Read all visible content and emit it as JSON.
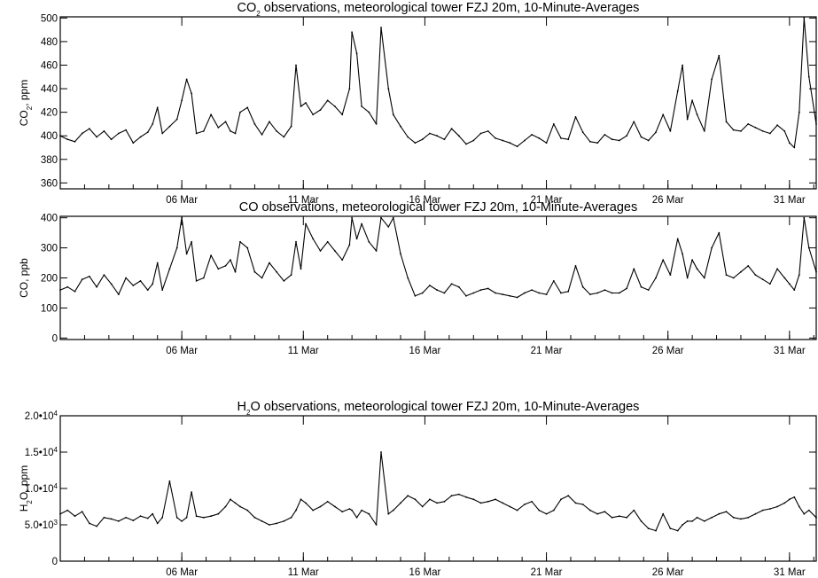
{
  "chart_data": [
    {
      "type": "line",
      "title": {
        "pre": "CO",
        "sub": "2",
        "post": " observations, meteorological tower FZJ 20m, 10-Minute-Averages"
      },
      "ylabel": {
        "pre": "CO",
        "sub": "2",
        "post": ", ppm"
      },
      "ylim": [
        355,
        501
      ],
      "yticks": [
        {
          "value": 360,
          "label": "360"
        },
        {
          "value": 380,
          "label": "380"
        },
        {
          "value": 400,
          "label": "400"
        },
        {
          "value": 420,
          "label": "420"
        },
        {
          "value": 440,
          "label": "440"
        },
        {
          "value": 460,
          "label": "460"
        },
        {
          "value": 480,
          "label": "480"
        },
        {
          "value": 500,
          "label": "500"
        }
      ],
      "xlim": [
        1,
        32.1
      ],
      "xticks": [
        {
          "value": 6,
          "label": "06 Mar"
        },
        {
          "value": 11,
          "label": "11 Mar"
        },
        {
          "value": 16,
          "label": "16 Mar"
        },
        {
          "value": 21,
          "label": "21 Mar"
        },
        {
          "value": 26,
          "label": "26 Mar"
        },
        {
          "value": 31,
          "label": "31 Mar"
        }
      ],
      "series": [
        {
          "x": [
            1.0,
            1.3,
            1.6,
            1.9,
            2.2,
            2.5,
            2.8,
            3.1,
            3.4,
            3.7,
            4.0,
            4.3,
            4.6,
            4.8,
            5.0,
            5.2,
            5.5,
            5.8,
            6.0,
            6.2,
            6.4,
            6.6,
            6.9,
            7.2,
            7.5,
            7.8,
            8.0,
            8.2,
            8.4,
            8.7,
            9.0,
            9.3,
            9.6,
            9.9,
            10.2,
            10.5,
            10.7,
            10.9,
            11.1,
            11.4,
            11.7,
            12.0,
            12.3,
            12.6,
            12.9,
            13.0,
            13.2,
            13.4,
            13.7,
            14.0,
            14.2,
            14.5,
            14.7,
            15.0,
            15.3,
            15.6,
            15.9,
            16.2,
            16.5,
            16.8,
            17.1,
            17.4,
            17.7,
            18.0,
            18.3,
            18.6,
            18.9,
            19.2,
            19.5,
            19.8,
            20.1,
            20.4,
            20.7,
            21.0,
            21.3,
            21.6,
            21.9,
            22.2,
            22.5,
            22.8,
            23.1,
            23.4,
            23.7,
            24.0,
            24.3,
            24.6,
            24.9,
            25.2,
            25.5,
            25.8,
            26.1,
            26.4,
            26.6,
            26.8,
            27.0,
            27.2,
            27.5,
            27.8,
            28.1,
            28.4,
            28.7,
            29.0,
            29.3,
            29.6,
            29.9,
            30.2,
            30.5,
            30.8,
            31.0,
            31.2,
            31.4,
            31.6,
            31.8,
            32.1
          ],
          "y": [
            400,
            397,
            395,
            402,
            406,
            399,
            404,
            397,
            402,
            405,
            394,
            399,
            403,
            410,
            424,
            402,
            408,
            414,
            430,
            448,
            436,
            402,
            404,
            418,
            407,
            412,
            404,
            402,
            420,
            424,
            410,
            401,
            412,
            404,
            399,
            408,
            460,
            425,
            428,
            418,
            422,
            430,
            425,
            418,
            440,
            488,
            470,
            425,
            420,
            410,
            492,
            440,
            418,
            408,
            399,
            394,
            397,
            402,
            400,
            397,
            406,
            400,
            393,
            396,
            402,
            404,
            398,
            396,
            394,
            391,
            396,
            401,
            398,
            394,
            410,
            398,
            397,
            416,
            403,
            395,
            394,
            401,
            397,
            396,
            400,
            412,
            399,
            396,
            403,
            418,
            404,
            438,
            460,
            414,
            430,
            418,
            404,
            448,
            468,
            412,
            405,
            404,
            410,
            407,
            404,
            402,
            409,
            404,
            394,
            390,
            420,
            500,
            450,
            410
          ]
        }
      ]
    },
    {
      "type": "line",
      "title": {
        "pre": "CO observations, meteorological tower FZJ 20m, 10-Minute-Averages",
        "sub": "",
        "post": ""
      },
      "ylabel": {
        "pre": "CO, ppb",
        "sub": "",
        "post": ""
      },
      "ylim": [
        -5,
        405
      ],
      "yticks": [
        {
          "value": 0,
          "label": "0"
        },
        {
          "value": 100,
          "label": "100"
        },
        {
          "value": 200,
          "label": "200"
        },
        {
          "value": 300,
          "label": "300"
        },
        {
          "value": 400,
          "label": "400"
        }
      ],
      "xlim": [
        1,
        32.1
      ],
      "xticks": [
        {
          "value": 6,
          "label": "06 Mar"
        },
        {
          "value": 11,
          "label": "11 Mar"
        },
        {
          "value": 16,
          "label": "16 Mar"
        },
        {
          "value": 21,
          "label": "21 Mar"
        },
        {
          "value": 26,
          "label": "26 Mar"
        },
        {
          "value": 31,
          "label": "31 Mar"
        }
      ],
      "series": [
        {
          "x": [
            1.0,
            1.3,
            1.6,
            1.9,
            2.2,
            2.5,
            2.8,
            3.1,
            3.4,
            3.7,
            4.0,
            4.3,
            4.6,
            4.8,
            5.0,
            5.2,
            5.5,
            5.8,
            6.0,
            6.2,
            6.4,
            6.6,
            6.9,
            7.2,
            7.5,
            7.8,
            8.0,
            8.2,
            8.4,
            8.7,
            9.0,
            9.3,
            9.6,
            9.9,
            10.2,
            10.5,
            10.7,
            10.9,
            11.1,
            11.4,
            11.7,
            12.0,
            12.3,
            12.6,
            12.9,
            13.0,
            13.2,
            13.4,
            13.7,
            14.0,
            14.2,
            14.5,
            14.7,
            15.0,
            15.3,
            15.6,
            15.9,
            16.2,
            16.5,
            16.8,
            17.1,
            17.4,
            17.7,
            18.0,
            18.3,
            18.6,
            18.9,
            19.2,
            19.5,
            19.8,
            20.1,
            20.4,
            20.7,
            21.0,
            21.3,
            21.6,
            21.9,
            22.2,
            22.5,
            22.8,
            23.1,
            23.4,
            23.7,
            24.0,
            24.3,
            24.6,
            24.9,
            25.2,
            25.5,
            25.8,
            26.1,
            26.4,
            26.6,
            26.8,
            27.0,
            27.2,
            27.5,
            27.8,
            28.1,
            28.4,
            28.7,
            29.0,
            29.3,
            29.6,
            29.9,
            30.2,
            30.5,
            30.8,
            31.0,
            31.2,
            31.4,
            31.6,
            31.8,
            32.1
          ],
          "y": [
            160,
            170,
            155,
            195,
            205,
            170,
            210,
            180,
            145,
            200,
            175,
            190,
            160,
            180,
            250,
            160,
            230,
            300,
            400,
            280,
            320,
            190,
            200,
            275,
            230,
            240,
            260,
            220,
            320,
            300,
            220,
            200,
            250,
            220,
            190,
            210,
            320,
            230,
            380,
            330,
            290,
            320,
            290,
            260,
            310,
            400,
            330,
            380,
            320,
            290,
            400,
            370,
            400,
            280,
            200,
            140,
            150,
            175,
            160,
            150,
            180,
            170,
            140,
            150,
            160,
            165,
            150,
            145,
            140,
            135,
            150,
            160,
            150,
            145,
            190,
            150,
            155,
            240,
            170,
            145,
            150,
            160,
            150,
            150,
            165,
            230,
            170,
            160,
            200,
            260,
            210,
            330,
            280,
            200,
            260,
            230,
            200,
            300,
            350,
            210,
            200,
            220,
            240,
            210,
            195,
            180,
            230,
            200,
            180,
            160,
            210,
            400,
            300,
            220
          ]
        }
      ]
    },
    {
      "type": "line",
      "title": {
        "pre": "H",
        "sub": "2",
        "post": "O observations, meteorological tower FZJ 20m, 10-Minute-Averages"
      },
      "ylabel": {
        "pre": "H",
        "sub": "2",
        "post": "O, ppm"
      },
      "ylim": [
        0,
        20000
      ],
      "yticks": [
        {
          "value": 0,
          "label": "0"
        },
        {
          "value": 5000,
          "label": "5.0•10",
          "exp": "3"
        },
        {
          "value": 10000,
          "label": "1.0•10",
          "exp": "4"
        },
        {
          "value": 15000,
          "label": "1.5•10",
          "exp": "4"
        },
        {
          "value": 20000,
          "label": "2.0•10",
          "exp": "4"
        }
      ],
      "xlim": [
        1,
        32.1
      ],
      "xticks": [
        {
          "value": 6,
          "label": "06 Mar"
        },
        {
          "value": 11,
          "label": "11 Mar"
        },
        {
          "value": 16,
          "label": "16 Mar"
        },
        {
          "value": 21,
          "label": "21 Mar"
        },
        {
          "value": 26,
          "label": "26 Mar"
        },
        {
          "value": 31,
          "label": "31 Mar"
        }
      ],
      "series": [
        {
          "x": [
            1.0,
            1.3,
            1.6,
            1.9,
            2.2,
            2.5,
            2.8,
            3.1,
            3.4,
            3.7,
            4.0,
            4.3,
            4.6,
            4.8,
            5.0,
            5.2,
            5.5,
            5.8,
            6.0,
            6.2,
            6.4,
            6.6,
            6.9,
            7.2,
            7.5,
            7.8,
            8.0,
            8.2,
            8.4,
            8.7,
            9.0,
            9.3,
            9.6,
            9.9,
            10.2,
            10.5,
            10.7,
            10.9,
            11.1,
            11.4,
            11.7,
            12.0,
            12.3,
            12.6,
            12.9,
            13.0,
            13.2,
            13.4,
            13.7,
            14.0,
            14.2,
            14.5,
            14.7,
            15.0,
            15.3,
            15.6,
            15.9,
            16.2,
            16.5,
            16.8,
            17.1,
            17.4,
            17.7,
            18.0,
            18.3,
            18.6,
            18.9,
            19.2,
            19.5,
            19.8,
            20.1,
            20.4,
            20.7,
            21.0,
            21.3,
            21.6,
            21.9,
            22.2,
            22.5,
            22.8,
            23.1,
            23.4,
            23.7,
            24.0,
            24.3,
            24.6,
            24.9,
            25.2,
            25.5,
            25.8,
            26.1,
            26.4,
            26.6,
            26.8,
            27.0,
            27.2,
            27.5,
            27.8,
            28.1,
            28.4,
            28.7,
            29.0,
            29.3,
            29.6,
            29.9,
            30.2,
            30.5,
            30.8,
            31.0,
            31.2,
            31.4,
            31.6,
            31.8,
            32.1
          ],
          "y": [
            6500,
            7000,
            6200,
            6800,
            5200,
            4800,
            6000,
            5800,
            5500,
            6000,
            5600,
            6200,
            5900,
            6500,
            5200,
            6000,
            11000,
            6000,
            5500,
            6000,
            9500,
            6200,
            6000,
            6200,
            6500,
            7500,
            8500,
            8000,
            7500,
            7000,
            6000,
            5500,
            5000,
            5200,
            5500,
            6000,
            7000,
            8500,
            8000,
            7000,
            7500,
            8200,
            7500,
            6800,
            7200,
            7000,
            6000,
            7000,
            6500,
            5000,
            15000,
            6500,
            7000,
            8000,
            9000,
            8500,
            7500,
            8500,
            8000,
            8200,
            9000,
            9200,
            8800,
            8500,
            8000,
            8200,
            8500,
            8000,
            7500,
            7000,
            7800,
            8200,
            7000,
            6500,
            7000,
            8500,
            9000,
            8000,
            7800,
            7000,
            6500,
            6800,
            6000,
            6200,
            6000,
            7000,
            5500,
            4500,
            4200,
            6500,
            4500,
            4200,
            5000,
            5500,
            5500,
            6000,
            5500,
            6000,
            6500,
            6800,
            6000,
            5800,
            6000,
            6500,
            7000,
            7200,
            7500,
            8000,
            8500,
            8800,
            7500,
            6500,
            7000,
            6000
          ]
        }
      ]
    }
  ]
}
